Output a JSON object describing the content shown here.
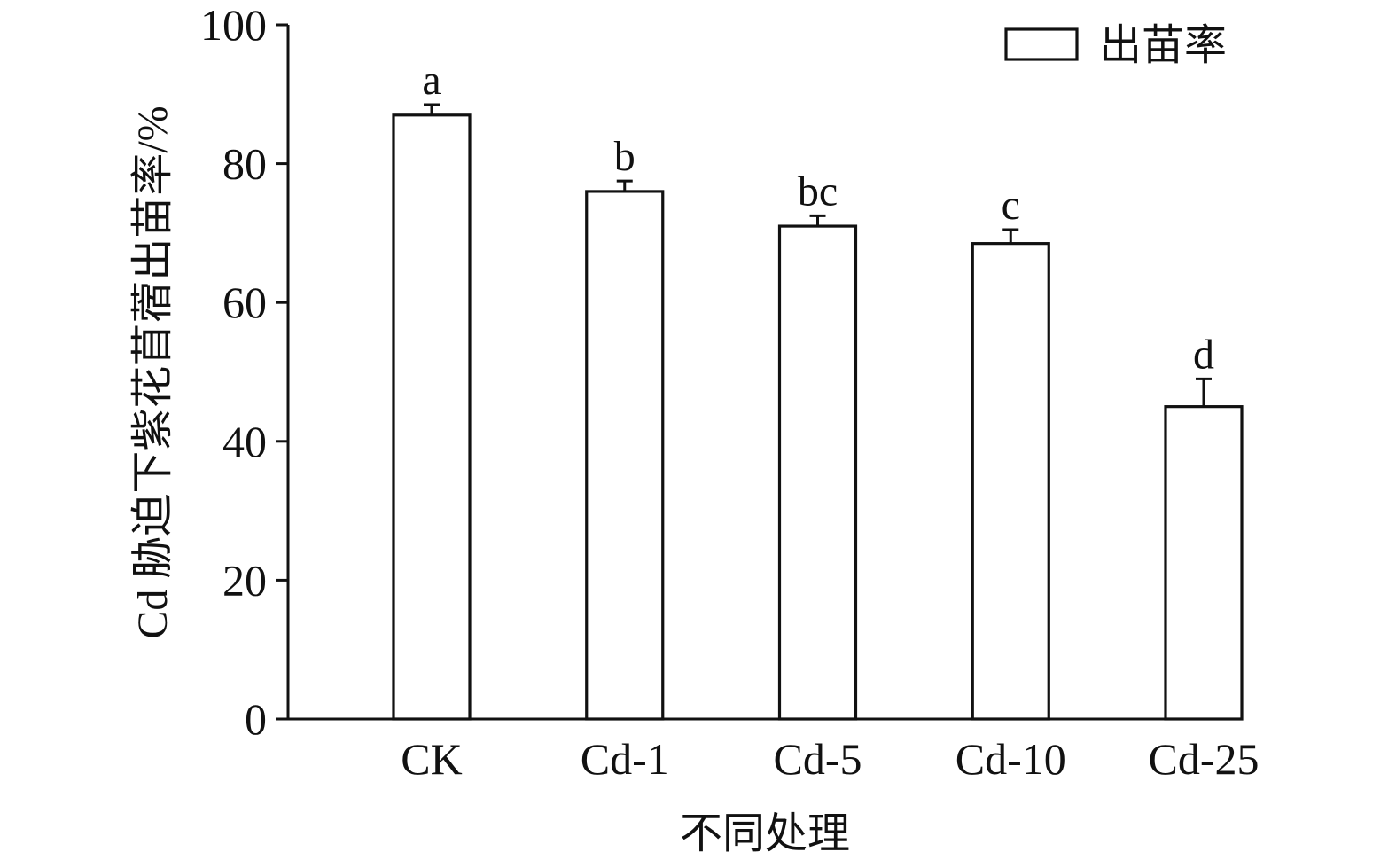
{
  "chart_data": {
    "type": "bar",
    "categories": [
      "CK",
      "Cd-1",
      "Cd-5",
      "Cd-10",
      "Cd-25"
    ],
    "series": [
      {
        "name": "出苗率",
        "values": [
          87,
          76,
          71,
          68.5,
          45
        ],
        "errors": [
          1.5,
          1.5,
          1.5,
          2,
          4
        ],
        "significance_labels": [
          "a",
          "b",
          "bc",
          "c",
          "d"
        ]
      }
    ],
    "xlabel": "不同处理",
    "ylabel": "Cd 胁迫下紫花苜蓿出苗率/%",
    "ylim": [
      0,
      100
    ],
    "yticks": [
      0,
      20,
      40,
      60,
      80,
      100
    ],
    "legend_position": "top-right",
    "grid": false,
    "colors": {
      "bar_fill": "#ffffff",
      "bar_stroke": "#111111"
    }
  }
}
